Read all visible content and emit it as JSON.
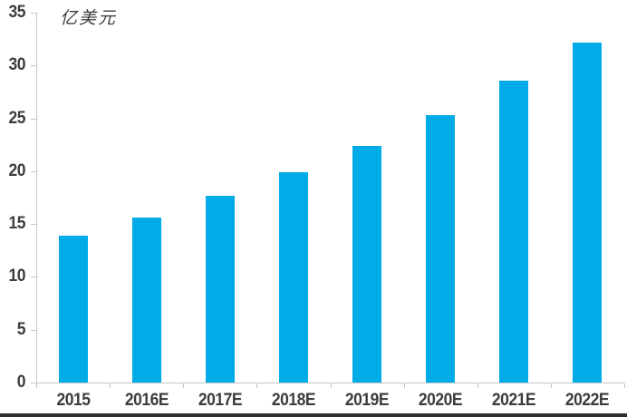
{
  "window": {
    "background": "#ffffff",
    "bottom_edge_color": "#2f2f2f"
  },
  "chart_data": {
    "type": "bar",
    "title": "",
    "ylabel": "亿美元",
    "xlabel": "",
    "categories": [
      "2015",
      "2016E",
      "2017E",
      "2018E",
      "2019E",
      "2020E",
      "2021E",
      "2022E"
    ],
    "values": [
      13.9,
      15.6,
      17.7,
      19.9,
      22.4,
      25.3,
      28.6,
      32.2
    ],
    "ylim": [
      0,
      35
    ],
    "ytick_step": 5,
    "ytick_labels": [
      "0",
      "5",
      "10",
      "15",
      "20",
      "25",
      "30",
      "35"
    ],
    "grid": false,
    "legend": "none",
    "bar_color": "#00ACE8",
    "axis_color": "#C6C6C6",
    "label_color": "#3C3C3C"
  }
}
